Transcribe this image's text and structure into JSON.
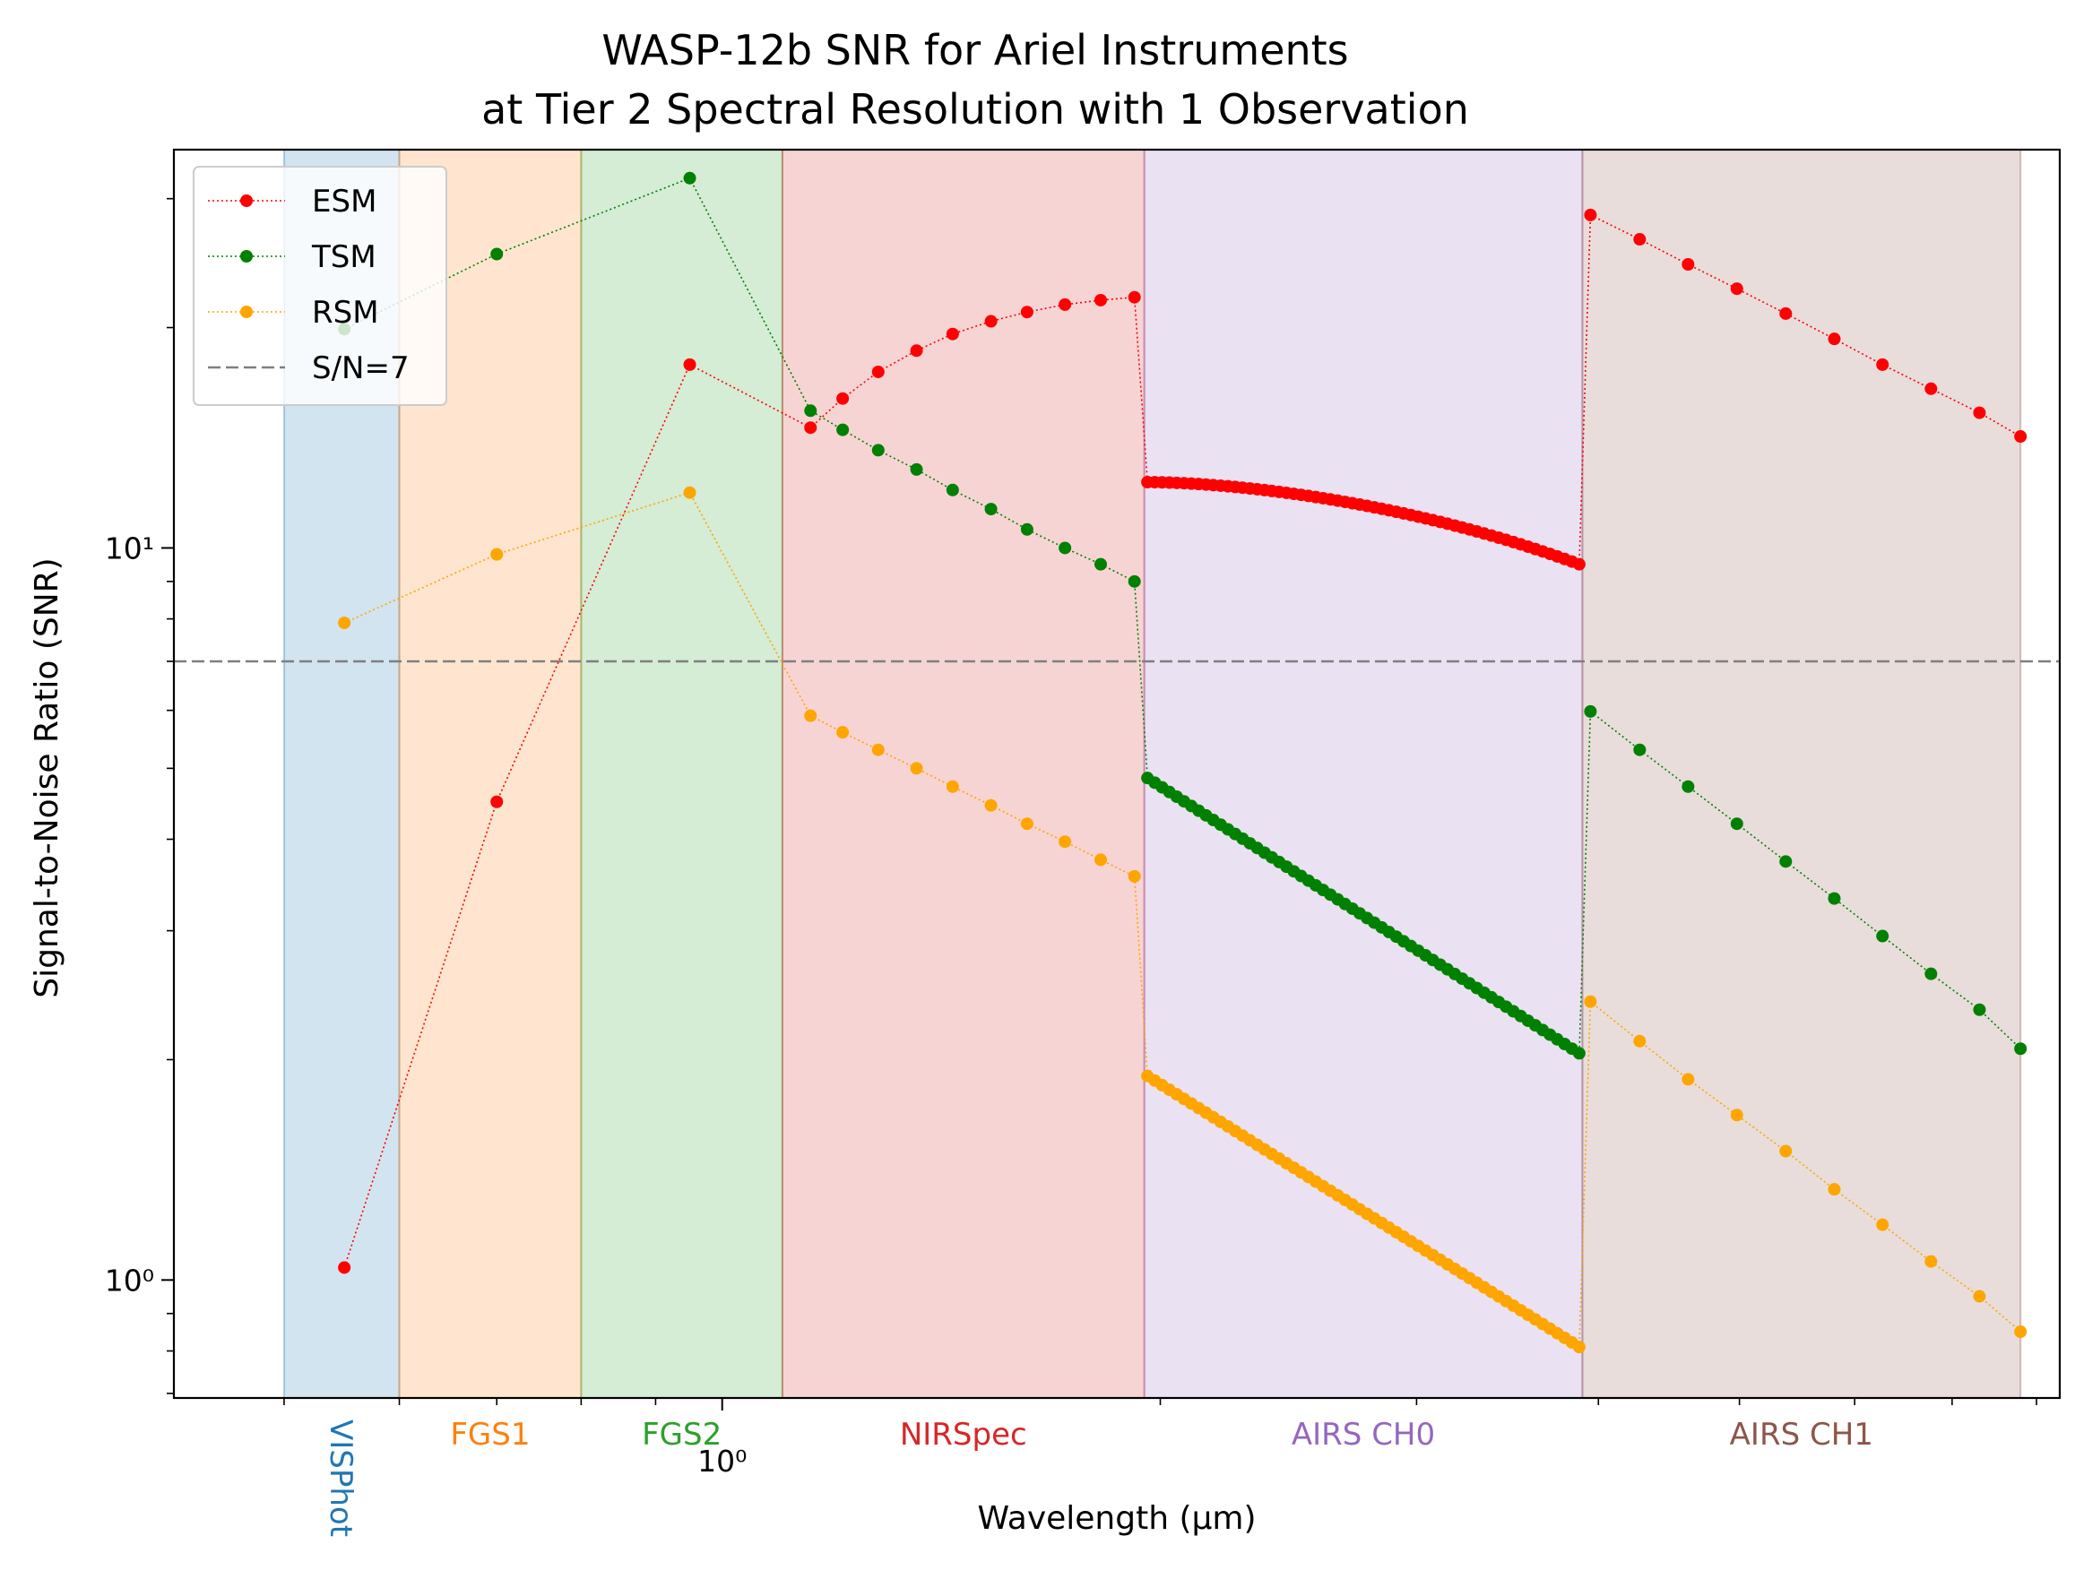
{
  "chart_data": {
    "type": "line",
    "title": "WASP-12b SNR for Ariel Instruments",
    "subtitle": "at Tier 2 Spectral Resolution with 1 Observation",
    "xlabel": "Wavelength (μm)",
    "ylabel": "Signal-to-Noise Ratio (SNR)",
    "x_scale": "log",
    "y_scale": "log",
    "xlim": [
      0.42,
      8.3
    ],
    "ylim": [
      0.69,
      35
    ],
    "x_ticks": [
      {
        "value": 1.0,
        "label": "10⁰"
      }
    ],
    "y_ticks": [
      {
        "value": 1,
        "label": "10⁰"
      },
      {
        "value": 10,
        "label": "10¹"
      }
    ],
    "reference_line": {
      "label": "S/N=7",
      "value": 7,
      "color": "#7f7f7f"
    },
    "legend": {
      "placement": "top-left"
    },
    "bands": [
      {
        "name": "VISPhot",
        "range": [
          0.5,
          0.6
        ],
        "color": "#1f77b4"
      },
      {
        "name": "FGS1",
        "range": [
          0.6,
          0.8
        ],
        "color": "#ff7f0e"
      },
      {
        "name": "FGS2",
        "range": [
          0.8,
          1.1
        ],
        "color": "#2ca02c"
      },
      {
        "name": "NIRSpec",
        "range": [
          1.1,
          1.95
        ],
        "color": "#d62728"
      },
      {
        "name": "AIRS CH0",
        "range": [
          1.95,
          3.9
        ],
        "color": "#9467bd"
      },
      {
        "name": "AIRS CH1",
        "range": [
          3.9,
          7.8
        ],
        "color": "#8c564b"
      }
    ],
    "series": [
      {
        "name": "ESM",
        "color": "#ff0000"
      },
      {
        "name": "TSM",
        "color": "#008000"
      },
      {
        "name": "RSM",
        "color": "#ffa500"
      }
    ],
    "segments": {
      "phot": {
        "x": [
          0.55,
          0.7,
          0.95
        ],
        "ESM": [
          1.04,
          4.5,
          17.8
        ],
        "TSM": [
          19.9,
          25.2,
          32.0
        ],
        "RSM": [
          7.9,
          9.8,
          11.9
        ]
      },
      "nirspec": {
        "x": [
          1.15,
          1.21,
          1.28,
          1.36,
          1.44,
          1.53,
          1.62,
          1.72,
          1.82,
          1.92
        ],
        "ESM": [
          14.6,
          16.0,
          17.4,
          18.6,
          19.6,
          20.4,
          21.0,
          21.5,
          21.8,
          22.0
        ],
        "TSM": [
          15.4,
          14.5,
          13.6,
          12.8,
          12.0,
          11.3,
          10.6,
          10.0,
          9.5,
          9.0
        ],
        "RSM": [
          5.9,
          5.6,
          5.3,
          5.0,
          4.72,
          4.45,
          4.2,
          3.97,
          3.75,
          3.56
        ]
      },
      "ch0": {
        "n": 60,
        "x_start": 1.95,
        "x_end": 3.9,
        "ESM": [
          12.3,
          9.5
        ],
        "TSM": [
          4.85,
          2.04
        ],
        "RSM": [
          1.9,
          0.81
        ]
      },
      "ch1": {
        "x": [
          3.95,
          4.27,
          4.61,
          4.98,
          5.38,
          5.81,
          6.27,
          6.77,
          7.31,
          7.8
        ],
        "ESM": [
          28.5,
          26.4,
          24.4,
          22.6,
          20.9,
          19.3,
          17.8,
          16.5,
          15.3,
          14.2
        ],
        "TSM": [
          5.98,
          5.3,
          4.72,
          4.2,
          3.73,
          3.32,
          2.95,
          2.62,
          2.34,
          2.07
        ],
        "RSM": [
          2.4,
          2.12,
          1.88,
          1.68,
          1.5,
          1.33,
          1.19,
          1.06,
          0.95,
          0.85
        ]
      }
    }
  }
}
